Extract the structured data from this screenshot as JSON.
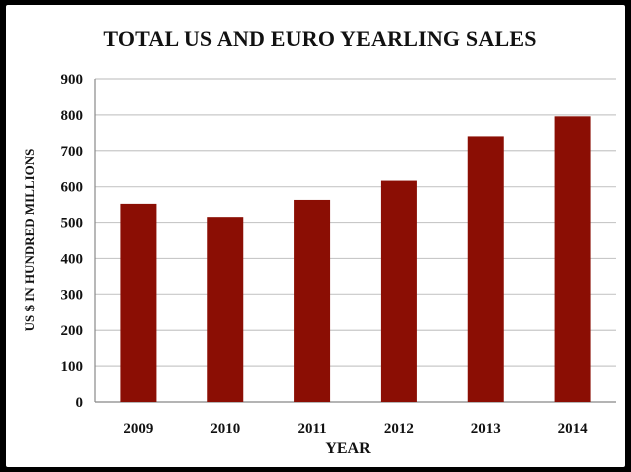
{
  "chart_data": {
    "type": "bar",
    "title": "TOTAL US AND EURO YEARLING SALES",
    "xlabel": "YEAR",
    "ylabel": "US $ IN HUNDRED MILLIONS",
    "categories": [
      "2009",
      "2010",
      "2011",
      "2012",
      "2013",
      "2014"
    ],
    "values": [
      552,
      515,
      563,
      617,
      740,
      796
    ],
    "ylim": [
      0,
      900
    ],
    "yticks": [
      "0",
      "100",
      "200",
      "300",
      "400",
      "500",
      "600",
      "700",
      "800",
      "900"
    ],
    "grid": true,
    "legend": "none",
    "bar_color": "#8b0e04",
    "grid_color": "#c8c8c8"
  }
}
